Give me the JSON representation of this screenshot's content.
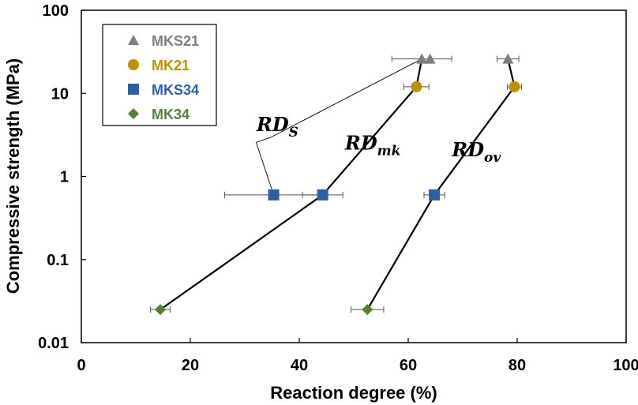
{
  "chart_data": {
    "type": "scatter",
    "xlabel": "Reaction degree (%)",
    "ylabel": "Compressive strength (MPa)",
    "xlim": [
      0,
      100
    ],
    "ylim": [
      0.01,
      100
    ],
    "yscale": "log",
    "x_ticks": [
      "0",
      "20",
      "40",
      "60",
      "80",
      "100"
    ],
    "y_ticks": [
      "0.01",
      "0.1",
      "1",
      "10",
      "100"
    ],
    "grid": false,
    "legend_position": "top-left",
    "series": [
      {
        "name": "MKS21",
        "marker": "triangle",
        "color": "#7f7f7f",
        "points": [
          {
            "x": 62.5,
            "y": 26,
            "xerr": 5.5
          },
          {
            "x": 64,
            "y": 26,
            "xerr": 0
          },
          {
            "x": 78.3,
            "y": 26,
            "xerr": 2
          }
        ]
      },
      {
        "name": "MK21",
        "marker": "circle",
        "color": "#bf9000",
        "points": [
          {
            "x": 61.5,
            "y": 12,
            "xerr": 2.3
          },
          {
            "x": 79.5,
            "y": 12,
            "xerr": 1.3
          }
        ]
      },
      {
        "name": "MKS34",
        "marker": "square",
        "color": "#2e5fa3",
        "points": [
          {
            "x": 35.3,
            "y": 0.6,
            "xerr": 9
          },
          {
            "x": 44.3,
            "y": 0.6,
            "xerr": 3.7
          },
          {
            "x": 64.8,
            "y": 0.6,
            "xerr": 1.9
          }
        ]
      },
      {
        "name": "MK34",
        "marker": "diamond",
        "color": "#548235",
        "points": [
          {
            "x": 14.5,
            "y": 0.025,
            "xerr": 1.8
          },
          {
            "x": 52.5,
            "y": 0.025,
            "xerr": 3
          }
        ]
      }
    ],
    "trend_lines": [
      {
        "label": "RD",
        "subscript": "mk",
        "points": [
          [
            14.5,
            0.025
          ],
          [
            44.3,
            0.6
          ],
          [
            61.5,
            12
          ],
          [
            62.5,
            26
          ]
        ]
      },
      {
        "label": "RD",
        "subscript": "ov",
        "points": [
          [
            52.5,
            0.025
          ],
          [
            64.8,
            0.6
          ],
          [
            79.5,
            12
          ],
          [
            78.3,
            26
          ]
        ]
      }
    ],
    "annotations": [
      {
        "label": "RD",
        "subscript": "S",
        "x": 36,
        "y": 3.5,
        "leader_to": [
          [
            35.3,
            0.6
          ],
          [
            62.5,
            26
          ]
        ]
      },
      {
        "label": "RD",
        "subscript": "mk",
        "x": 53.5,
        "y": 2.1
      },
      {
        "label": "RD",
        "subscript": "ov",
        "x": 72.5,
        "y": 1.75
      }
    ]
  }
}
